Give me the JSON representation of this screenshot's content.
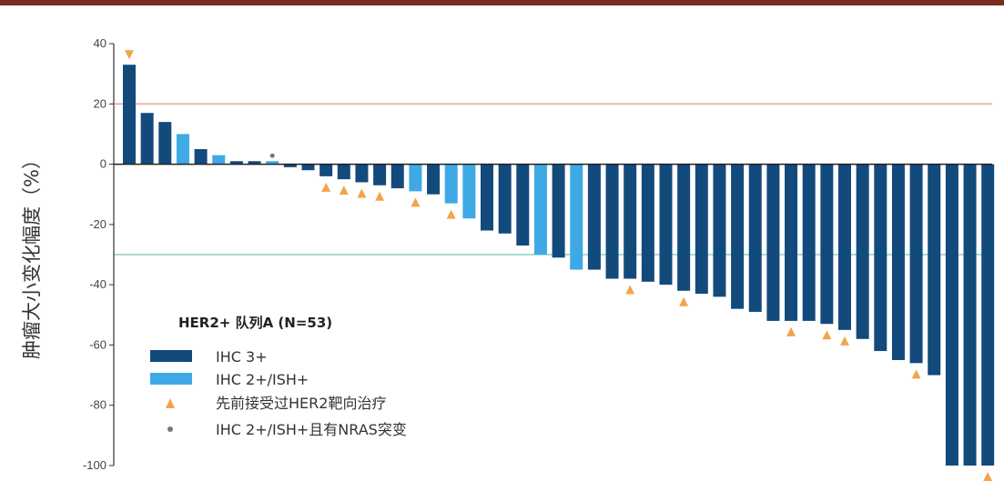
{
  "chart_data": {
    "type": "bar",
    "ylabel": "肿瘤大小变化幅度（%）",
    "ylim": [
      -100,
      40
    ],
    "yticks": [
      40,
      20,
      0,
      -20,
      -40,
      -60,
      -80,
      -100
    ],
    "reference_lines": [
      {
        "value": 20,
        "color": "#e8a39a"
      },
      {
        "value": -30,
        "color": "#8fd0c4"
      }
    ],
    "colors": {
      "IHC3": "#134a7c",
      "IHC2": "#3fa9e6",
      "prior": "#f3a44a",
      "nras": "#777777"
    },
    "values": [
      33,
      17,
      14,
      10,
      5,
      3,
      1,
      1,
      1,
      -1,
      -2,
      -4,
      -5,
      -6,
      -7,
      -8,
      -9,
      -10,
      -13,
      -18,
      -22,
      -23,
      -27,
      -30,
      -31,
      -35,
      -35,
      -38,
      -38,
      -39,
      -40,
      -42,
      -43,
      -44,
      -48,
      -49,
      -52,
      -52,
      -52,
      -53,
      -55,
      -58,
      -62,
      -65,
      -66,
      -70,
      -100,
      -100,
      -100
    ],
    "groups": [
      "IHC3",
      "IHC3",
      "IHC3",
      "IHC2",
      "IHC3",
      "IHC2",
      "IHC3",
      "IHC3",
      "IHC2",
      "IHC3",
      "IHC3",
      "IHC3",
      "IHC3",
      "IHC3",
      "IHC3",
      "IHC3",
      "IHC2",
      "IHC3",
      "IHC2",
      "IHC2",
      "IHC3",
      "IHC3",
      "IHC3",
      "IHC2",
      "IHC3",
      "IHC2",
      "IHC3",
      "IHC3",
      "IHC3",
      "IHC3",
      "IHC3",
      "IHC3",
      "IHC3",
      "IHC3",
      "IHC3",
      "IHC3",
      "IHC3",
      "IHC3",
      "IHC3",
      "IHC3",
      "IHC3",
      "IHC3",
      "IHC3",
      "IHC3",
      "IHC3",
      "IHC3",
      "IHC3",
      "IHC3",
      "IHC3"
    ],
    "prior_her2_therapy": [
      0,
      11,
      12,
      13,
      14,
      16,
      18,
      28,
      31,
      37,
      39,
      40,
      44,
      48
    ],
    "nras_mutation": [
      8
    ],
    "legend": {
      "title": "HER2+ 队列A (N=53)",
      "items": [
        {
          "label": "IHC 3+",
          "kind": "bar",
          "group": "IHC3"
        },
        {
          "label": "IHC 2+/ISH+",
          "kind": "bar",
          "group": "IHC2"
        },
        {
          "label": "先前接受过HER2靶向治疗",
          "kind": "triangle"
        },
        {
          "label": "IHC 2+/ISH+且有NRAS突变",
          "kind": "dot"
        }
      ]
    }
  }
}
